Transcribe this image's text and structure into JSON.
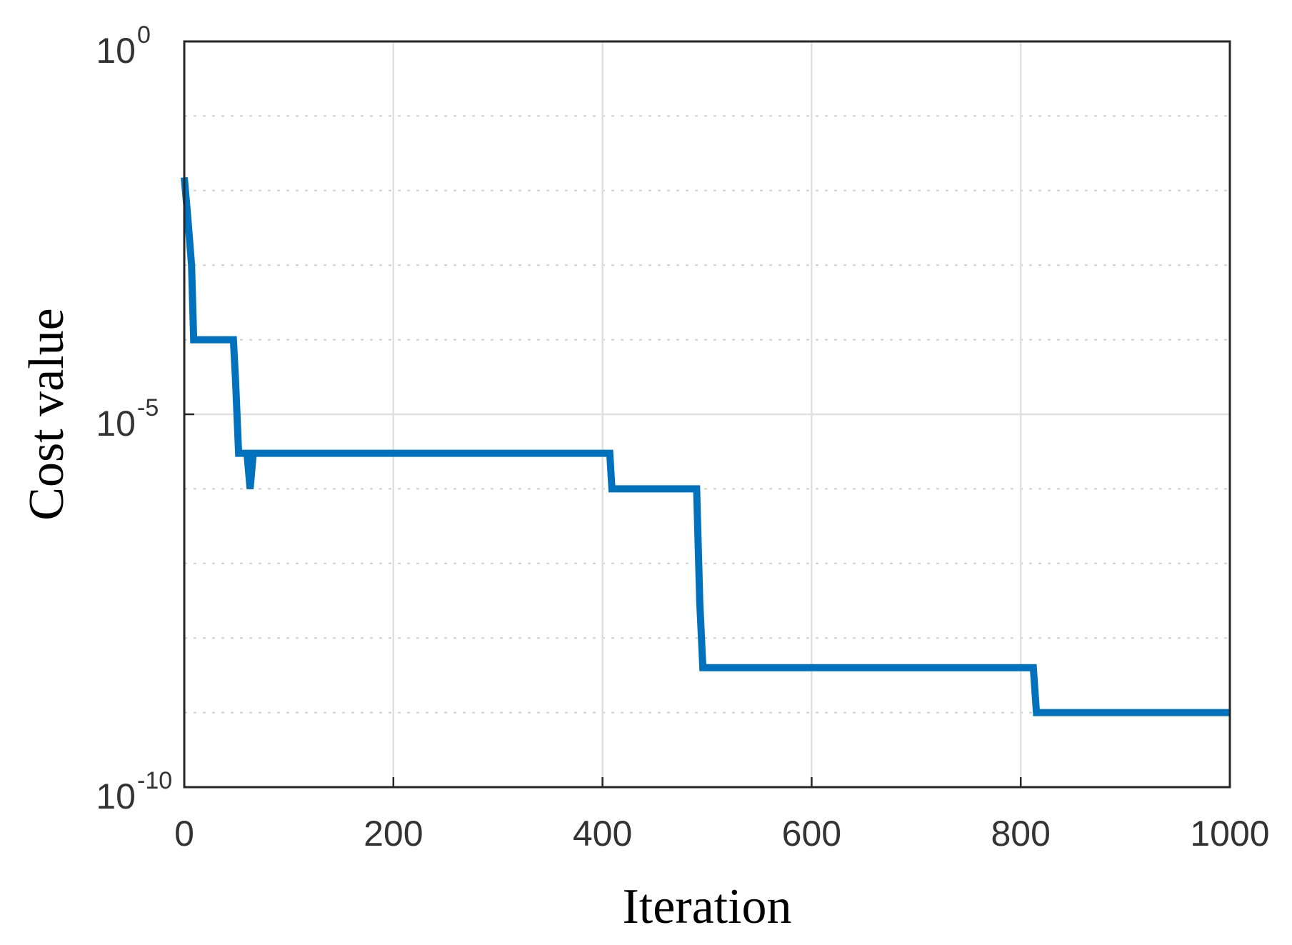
{
  "chart_data": {
    "type": "line",
    "title": "",
    "xlabel": "Iteration",
    "ylabel": "Cost value",
    "x_scale": "linear",
    "y_scale": "log",
    "xlim": [
      0,
      1000
    ],
    "ylim": [
      1e-10,
      1
    ],
    "grid": true,
    "minor_grid": "dotted",
    "x_ticks": [
      {
        "value": 0,
        "label": "0"
      },
      {
        "value": 200,
        "label": "200"
      },
      {
        "value": 400,
        "label": "400"
      },
      {
        "value": 600,
        "label": "600"
      },
      {
        "value": 800,
        "label": "800"
      },
      {
        "value": 1000,
        "label": "1000"
      }
    ],
    "y_ticks": [
      {
        "value": 1,
        "base": "10",
        "exponent": "0"
      },
      {
        "value": 1e-05,
        "base": "10",
        "exponent": "-5"
      },
      {
        "value": 1e-10,
        "base": "10",
        "exponent": "-10"
      }
    ],
    "y_minor_exponents": [
      -1,
      -2,
      -3,
      -4,
      -6,
      -7,
      -8,
      -9
    ],
    "series": [
      {
        "color": "#0072BD",
        "step": true,
        "x": [
          0,
          3,
          7,
          9,
          47,
          49,
          52,
          60,
          63,
          66,
          402,
          407,
          409,
          490,
          493,
          496,
          812,
          815,
          818,
          1000
        ],
        "y": [
          0.015,
          0.005,
          0.001,
          0.0001,
          0.0001,
          3e-05,
          3e-06,
          3e-06,
          1e-06,
          3e-06,
          3e-06,
          3e-06,
          1e-06,
          1e-06,
          3e-08,
          4e-09,
          4e-09,
          1e-09,
          1e-09,
          1e-09
        ]
      }
    ]
  }
}
